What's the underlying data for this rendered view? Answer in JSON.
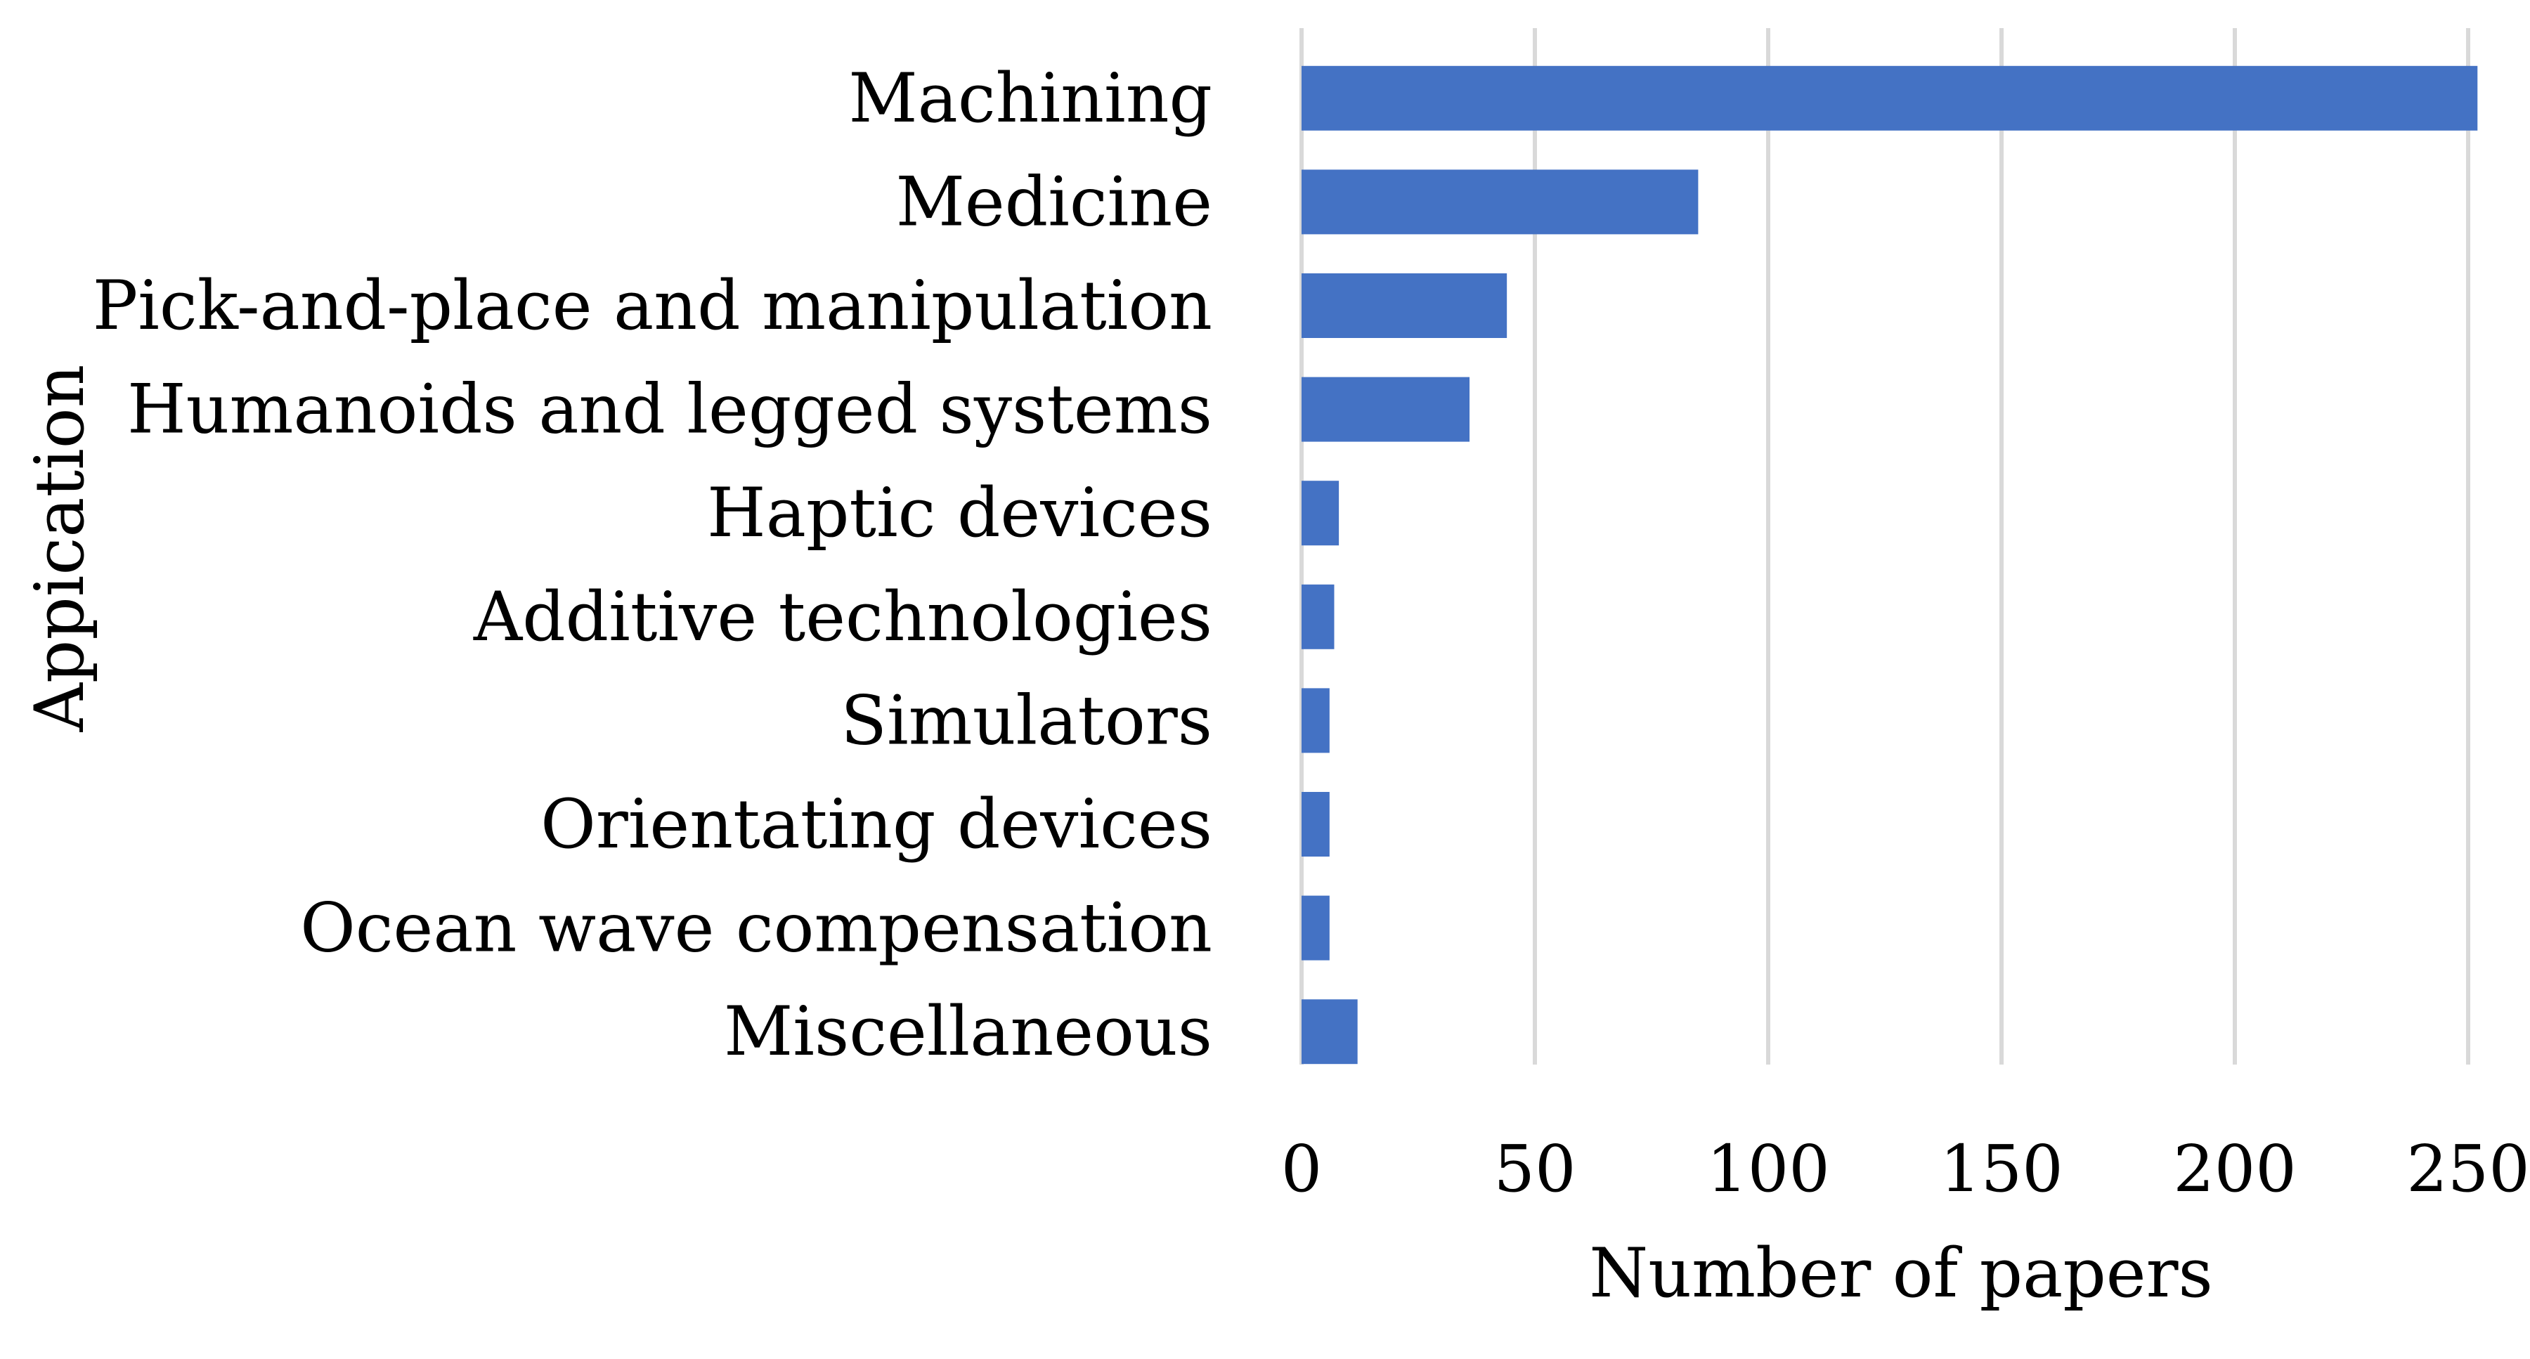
{
  "chart_data": {
    "type": "bar",
    "orientation": "horizontal",
    "categories": [
      "Machining",
      "Medicine",
      "Pick-and-place and manipulation",
      "Humanoids and legged systems",
      "Haptic devices",
      "Additive technologies",
      "Simulators",
      "Orientating devices",
      "Ocean wave compensation",
      "Miscellaneous"
    ],
    "values": [
      252,
      85,
      44,
      36,
      8,
      7,
      6,
      6,
      6,
      12
    ],
    "title": "",
    "xlabel": "Number of papers",
    "ylabel": "Appication",
    "xlim": [
      0,
      250
    ],
    "xticks": [
      0,
      50,
      100,
      150,
      200,
      250
    ],
    "xtick_labels": [
      "0",
      "50",
      "100",
      "150",
      "200",
      "250"
    ],
    "grid": "vertical",
    "legend": "none",
    "bar_color": "#4472C4",
    "grid_color": "#D9D9D9"
  }
}
